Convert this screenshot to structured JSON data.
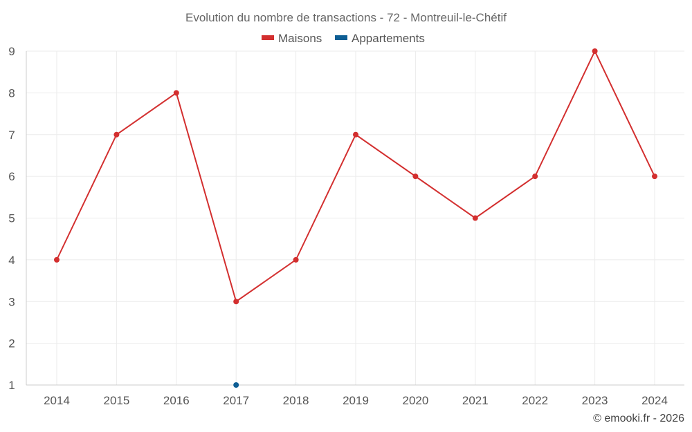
{
  "chart_data": {
    "type": "line",
    "title": "Evolution du nombre de transactions - 72 - Montreuil-le-Chétif",
    "x": [
      "2014",
      "2015",
      "2016",
      "2017",
      "2018",
      "2019",
      "2020",
      "2021",
      "2022",
      "2023",
      "2024"
    ],
    "ylim": [
      1,
      9
    ],
    "yticks": [
      "1",
      "2",
      "3",
      "4",
      "5",
      "6",
      "7",
      "8",
      "9"
    ],
    "grid": true,
    "legend_position": "top-center",
    "series": [
      {
        "name": "Maisons",
        "color": "#d32f2f",
        "points": [
          {
            "x": "2014",
            "y": 4
          },
          {
            "x": "2015",
            "y": 7
          },
          {
            "x": "2016",
            "y": 8
          },
          {
            "x": "2017",
            "y": 3
          },
          {
            "x": "2018",
            "y": 4
          },
          {
            "x": "2019",
            "y": 7
          },
          {
            "x": "2020",
            "y": 6
          },
          {
            "x": "2021",
            "y": 5
          },
          {
            "x": "2022",
            "y": 6
          },
          {
            "x": "2023",
            "y": 9
          },
          {
            "x": "2024",
            "y": 6
          }
        ]
      },
      {
        "name": "Appartements",
        "color": "#0d5e94",
        "points": [
          {
            "x": "2017",
            "y": 1
          }
        ]
      }
    ]
  },
  "credit": "© emooki.fr - 2026"
}
